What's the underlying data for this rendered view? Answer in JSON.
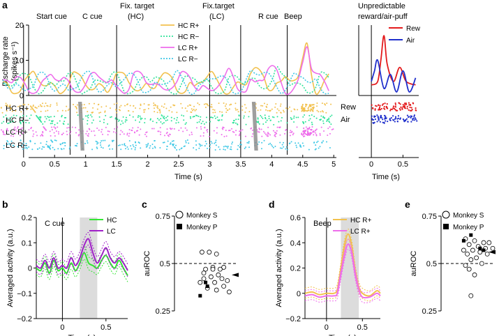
{
  "panel_letters": {
    "a": "a",
    "b": "b",
    "c": "c",
    "d": "d",
    "e": "e"
  },
  "colors": {
    "hc_rplus": "#F2C14E",
    "hc_rminus": "#2FE39A",
    "lc_rplus": "#EE6DEB",
    "lc_rminus": "#3FC8E6",
    "rew": "#E31A1C",
    "air": "#1F2FCC",
    "hc_b": "#33E633",
    "lc_b": "#A020C8",
    "shade": "#DCDCDC",
    "gray_bar": "#8E8E8E"
  },
  "chart_data": [
    {
      "id": "a_psth",
      "type": "line",
      "title": "",
      "event_labels": [
        "Start cue",
        "C cue",
        "Fix. target",
        "(HC)",
        "Fix.target",
        "(LC)",
        "R cue",
        "Beep"
      ],
      "event_times": [
        0,
        0.75,
        1.5,
        3.0,
        3.5,
        4.25
      ],
      "ylabel_line1": "Discharge rate",
      "ylabel_line2": "(spikes s⁻¹)",
      "xlabel": "Time (s)",
      "xlim": [
        -0.38,
        5.02
      ],
      "ylim": [
        0,
        20
      ],
      "yticks": [
        0,
        10,
        20
      ],
      "xticks": [
        0,
        0.5,
        1,
        1.5,
        2,
        2.5,
        3,
        3.5,
        4,
        4.5,
        5
      ],
      "xtick_labels": [
        "0",
        "0.5",
        "1",
        "1.5",
        "2",
        "2.5",
        "3",
        "3.5",
        "4",
        "4.5",
        "5"
      ],
      "yticklabels": [
        "0",
        "10",
        "20"
      ],
      "legend": [
        "HC R+",
        "HC R−",
        "LC R+",
        "LC R−"
      ],
      "raster_labels": [
        "HC R+",
        "HC R−",
        "LC R+",
        "LC R−"
      ],
      "beep_peak": [
        {
          "name": "HC R+",
          "value": 15
        },
        {
          "name": "LC R+",
          "value": 14
        }
      ]
    },
    {
      "id": "a_unpredictable",
      "type": "line",
      "title_line1": "Unpredictable",
      "title_line2": "reward/air-puff",
      "xlabel": "Time (s)",
      "xlim": [
        -0.2,
        0.75
      ],
      "ylim": [
        0,
        20
      ],
      "xticks": [
        0,
        0.5
      ],
      "xtick_labels": [
        "0",
        "0.5"
      ],
      "legend": [
        "Rew",
        "Air"
      ],
      "raster_labels": [
        "Rew",
        "Air"
      ],
      "series": [
        {
          "name": "Rew",
          "x": [
            0,
            0.1,
            0.15,
            0.2,
            0.25,
            0.35,
            0.45,
            0.55,
            0.7
          ],
          "y": [
            3,
            4,
            10,
            17,
            9,
            4,
            8,
            4,
            3
          ]
        },
        {
          "name": "Air",
          "x": [
            0,
            0.05,
            0.1,
            0.2,
            0.3,
            0.4,
            0.5,
            0.6,
            0.7
          ],
          "y": [
            4,
            7,
            10,
            2,
            6,
            1,
            7,
            1,
            5
          ]
        }
      ]
    },
    {
      "id": "b",
      "type": "line",
      "title": "C cue",
      "xlabel": "Time (s)",
      "ylabel": "Averaged activity (a.u.)",
      "xlim": [
        -0.3,
        0.75
      ],
      "ylim": [
        -0.2,
        0.2
      ],
      "yticks": [
        -0.2,
        -0.1,
        0,
        0.1,
        0.2
      ],
      "yticklabels": [
        "−0.2",
        "−0.1",
        "0",
        "0.1",
        "0.2"
      ],
      "xticks": [
        0,
        0.5
      ],
      "xtick_labels": [
        "0",
        "0.5"
      ],
      "shaded_window": [
        0.2,
        0.4
      ],
      "legend": [
        "HC",
        "LC"
      ],
      "series": [
        {
          "name": "HC",
          "x": [
            -0.3,
            -0.25,
            -0.2,
            -0.15,
            -0.1,
            -0.05,
            0,
            0.05,
            0.1,
            0.15,
            0.2,
            0.25,
            0.3,
            0.35,
            0.4,
            0.45,
            0.5,
            0.55,
            0.6,
            0.65,
            0.7,
            0.75
          ],
          "y": [
            0.0,
            -0.01,
            0.02,
            -0.02,
            0.03,
            -0.01,
            0.0,
            -0.02,
            0.02,
            -0.01,
            0.02,
            0.06,
            0.02,
            0.01,
            0.0,
            0.03,
            0.05,
            0.02,
            0.0,
            0.03,
            0.0,
            -0.03
          ]
        },
        {
          "name": "LC",
          "x": [
            -0.3,
            -0.25,
            -0.2,
            -0.15,
            -0.1,
            -0.05,
            0,
            0.05,
            0.1,
            0.15,
            0.2,
            0.25,
            0.3,
            0.35,
            0.4,
            0.45,
            0.5,
            0.55,
            0.6,
            0.65,
            0.7,
            0.75
          ],
          "y": [
            0.01,
            0.0,
            0.03,
            0.0,
            0.04,
            0.0,
            0.01,
            0.0,
            0.04,
            0.01,
            0.04,
            0.09,
            0.115,
            0.06,
            0.02,
            0.05,
            0.08,
            0.04,
            0.02,
            0.04,
            0.02,
            -0.01
          ]
        }
      ]
    },
    {
      "id": "c",
      "type": "scatter",
      "ylabel": "auROC",
      "ylim": [
        0.25,
        0.75
      ],
      "yticks": [
        0.25,
        0.5,
        0.75
      ],
      "yticklabels": [
        "0.25",
        "0.5",
        "0.75"
      ],
      "reference_line": 0.5,
      "arrow_value": 0.44,
      "legend": [
        "Monkey S",
        "Monkey P"
      ],
      "series": [
        {
          "name": "Monkey S",
          "marker": "open-circle",
          "x": [
            -0.06,
            -0.02,
            0.02,
            0.06,
            -0.04,
            0.0,
            0.04,
            -0.05,
            0.03,
            -0.01,
            0.05,
            0.08,
            -0.07,
            0.01,
            0.06,
            -0.03,
            0.02,
            0.09,
            0.0,
            -0.05
          ],
          "y": [
            0.56,
            0.56,
            0.55,
            0.48,
            0.47,
            0.48,
            0.47,
            0.45,
            0.44,
            0.43,
            0.42,
            0.41,
            0.4,
            0.4,
            0.38,
            0.37,
            0.36,
            0.35,
            0.47,
            0.42
          ]
        },
        {
          "name": "Monkey P",
          "marker": "filled-square",
          "x": [
            -0.04,
            -0.03,
            -0.07
          ],
          "y": [
            0.4,
            0.38,
            0.33
          ]
        }
      ]
    },
    {
      "id": "d",
      "type": "line",
      "title": "Beep",
      "xlabel": "Time (s)",
      "ylabel": "Averaged activity (a.u.)",
      "xlim": [
        -0.3,
        0.75
      ],
      "ylim": [
        -0.2,
        0.6
      ],
      "yticks": [
        -0.2,
        0,
        0.2,
        0.4,
        0.6
      ],
      "yticklabels": [
        "−0.2",
        "0",
        "0.2",
        "0.4",
        "0.6"
      ],
      "xticks": [
        0,
        0.5
      ],
      "xtick_labels": [
        "0",
        "0.5"
      ],
      "shaded_window": [
        0.2,
        0.45
      ],
      "legend": [
        "HC R+",
        "LC R+"
      ],
      "series": [
        {
          "name": "HC R+",
          "x": [
            -0.3,
            -0.2,
            -0.1,
            0,
            0.1,
            0.15,
            0.2,
            0.25,
            0.3,
            0.35,
            0.4,
            0.45,
            0.5,
            0.6,
            0.7,
            0.75
          ],
          "y": [
            0.0,
            0.01,
            -0.01,
            0.0,
            0.0,
            0.03,
            0.2,
            0.38,
            0.47,
            0.38,
            0.18,
            0.05,
            0.0,
            -0.02,
            0.02,
            0.0
          ]
        },
        {
          "name": "LC R+",
          "x": [
            -0.3,
            -0.2,
            -0.1,
            0,
            0.1,
            0.15,
            0.2,
            0.25,
            0.3,
            0.35,
            0.4,
            0.45,
            0.5,
            0.6,
            0.7,
            0.75
          ],
          "y": [
            -0.02,
            -0.01,
            -0.03,
            -0.02,
            -0.02,
            0.0,
            0.15,
            0.3,
            0.39,
            0.32,
            0.15,
            0.03,
            -0.03,
            -0.03,
            0.0,
            -0.02
          ]
        }
      ]
    },
    {
      "id": "e",
      "type": "scatter",
      "ylabel": "auROC",
      "ylim": [
        0.25,
        0.75
      ],
      "yticks": [
        0.25,
        0.5,
        0.75
      ],
      "yticklabels": [
        "0.25",
        "0.5",
        "0.75"
      ],
      "reference_line": 0.5,
      "arrow_value": 0.56,
      "legend": [
        "Monkey S",
        "Monkey P"
      ],
      "series": [
        {
          "name": "Monkey S",
          "marker": "open-circle",
          "x": [
            -0.05,
            0.0,
            0.05,
            0.08,
            -0.03,
            0.02,
            0.06,
            0.1,
            -0.06,
            -0.01,
            0.03,
            0.07,
            -0.04,
            0.01,
            -0.02,
            0.04,
            -0.05,
            -0.03,
            0.0,
            -0.02
          ],
          "y": [
            0.63,
            0.62,
            0.61,
            0.61,
            0.6,
            0.59,
            0.58,
            0.58,
            0.57,
            0.57,
            0.56,
            0.55,
            0.55,
            0.53,
            0.52,
            0.5,
            0.49,
            0.47,
            0.44,
            0.33
          ]
        },
        {
          "name": "Monkey P",
          "marker": "filled-square",
          "x": [
            -0.02,
            -0.06,
            0.03,
            0.05
          ],
          "y": [
            0.65,
            0.62,
            0.58,
            0.57
          ]
        }
      ]
    }
  ]
}
